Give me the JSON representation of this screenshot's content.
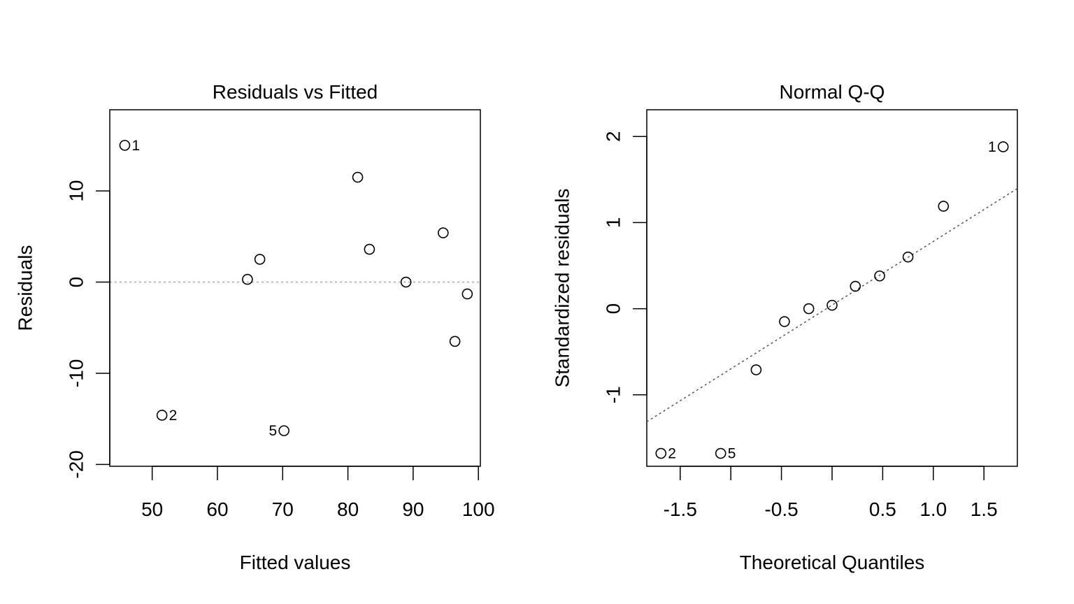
{
  "chart_data": [
    {
      "type": "scatter",
      "title": "Residuals vs Fitted",
      "xlabel": "Fitted values",
      "ylabel": "Residuals",
      "xlim": [
        43.5,
        100.3
      ],
      "ylim": [
        -20.2,
        18.9
      ],
      "x_ticks": [
        50,
        60,
        70,
        80,
        90,
        100
      ],
      "x_tick_labels": [
        "50",
        "60",
        "70",
        "80",
        "90",
        "100"
      ],
      "y_ticks": [
        -20,
        -10,
        0,
        10
      ],
      "y_tick_labels": [
        "-20",
        "-10",
        "0",
        "10"
      ],
      "reference_line": {
        "type": "horizontal",
        "y": 0,
        "style": "dotted",
        "color": "#aaaaaa"
      },
      "points": [
        {
          "x": 45.8,
          "y": 15.0,
          "label": "1",
          "label_side": "right"
        },
        {
          "x": 51.5,
          "y": -14.6,
          "label": "2",
          "label_side": "right"
        },
        {
          "x": 64.6,
          "y": 0.3
        },
        {
          "x": 66.5,
          "y": 2.5
        },
        {
          "x": 70.2,
          "y": -16.3,
          "label": "5",
          "label_side": "left"
        },
        {
          "x": 81.5,
          "y": 11.5
        },
        {
          "x": 83.3,
          "y": 3.6
        },
        {
          "x": 88.9,
          "y": 0.0
        },
        {
          "x": 94.6,
          "y": 5.4
        },
        {
          "x": 96.4,
          "y": -6.5
        },
        {
          "x": 98.3,
          "y": -1.3
        }
      ]
    },
    {
      "type": "scatter",
      "title": "Normal Q-Q",
      "xlabel": "Theoretical Quantiles",
      "ylabel": "Standardized residuals",
      "xlim": [
        -1.83,
        1.83
      ],
      "ylim": [
        -1.83,
        2.31
      ],
      "x_ticks": [
        -1.5,
        -1.0,
        -0.5,
        0.0,
        0.5,
        1.0,
        1.5
      ],
      "x_tick_labels": [
        "-1.5",
        "",
        "-0.5",
        "",
        "0.5",
        "1.0",
        "1.5"
      ],
      "y_ticks": [
        -1,
        0,
        1,
        2
      ],
      "y_tick_labels": [
        "-1",
        "0",
        "1",
        "2"
      ],
      "reference_line": {
        "type": "qq",
        "intercept": 0.041,
        "slope": 0.74,
        "style": "dotted",
        "color": "#555555"
      },
      "points": [
        {
          "x": -1.69,
          "y": -1.68,
          "label": "2",
          "label_side": "right"
        },
        {
          "x": -1.1,
          "y": -1.68,
          "label": "5",
          "label_side": "right"
        },
        {
          "x": -0.75,
          "y": -0.71
        },
        {
          "x": -0.47,
          "y": -0.15
        },
        {
          "x": -0.23,
          "y": 0.0
        },
        {
          "x": 0.0,
          "y": 0.04
        },
        {
          "x": 0.23,
          "y": 0.26
        },
        {
          "x": 0.47,
          "y": 0.38
        },
        {
          "x": 0.75,
          "y": 0.6
        },
        {
          "x": 1.1,
          "y": 1.19
        },
        {
          "x": 1.69,
          "y": 1.88,
          "label": "1",
          "label_side": "left"
        }
      ]
    }
  ]
}
